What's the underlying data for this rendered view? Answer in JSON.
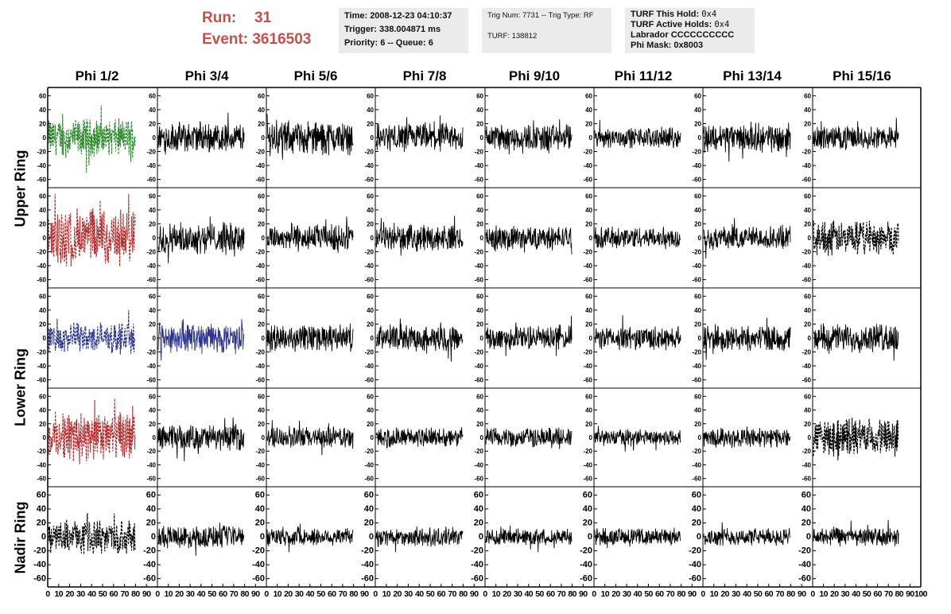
{
  "header": {
    "run_label": "Run:",
    "run_value": "31",
    "event_label": "Event:",
    "event_value": "3616503",
    "time": "Time: 2008-12-23 04:10:37",
    "trigger": "Trigger: 338.004871 ms",
    "priority": "Priority: 6 -- Queue: 6",
    "trig_num": "Trig Num: 7731 -- Trig Type: RF",
    "turf": "TURF: 138812",
    "turf_this_hold_label": "TURF This Hold:",
    "turf_this_hold_value": "0x4",
    "turf_active_holds_label": "TURF Active Holds:",
    "turf_active_holds_value": "0x4",
    "labrador": "Labrador CCCCCCCCCC",
    "phi_mask": "Phi Mask: 0x8003"
  },
  "columns": [
    "Phi 1/2",
    "Phi 3/4",
    "Phi 5/6",
    "Phi 7/8",
    "Phi 9/10",
    "Phi 11/12",
    "Phi 13/14",
    "Phi 15/16"
  ],
  "rows": [
    "Upper Ring",
    "Lower Ring",
    "Nadir Ring"
  ],
  "colors": {
    "green": "#2a8a2a",
    "red": "#b52a2a",
    "blue": "#2b3590",
    "black": "#000000"
  },
  "chart_data": {
    "type": "line",
    "layout": "grid of 5 panel rows x 8 panel columns; two panel rows per Upper/Lower ring, one panel row for Nadir ring",
    "ylim": [
      -65,
      65
    ],
    "xlim": [
      0,
      100
    ],
    "yticks": [
      -60,
      -40,
      -20,
      0,
      20,
      40,
      60
    ],
    "xticks": [
      0,
      10,
      20,
      30,
      40,
      50,
      60,
      70,
      80,
      90,
      100
    ],
    "panel_rows": [
      {
        "ring": "Upper Ring",
        "amplitude": [
          22,
          18,
          20,
          17,
          16,
          12,
          17,
          14
        ],
        "highlight": [
          {
            "col": 0,
            "color": "green",
            "dashed": true
          }
        ]
      },
      {
        "ring": "Upper Ring",
        "amplitude": [
          35,
          18,
          16,
          15,
          14,
          13,
          14,
          20
        ],
        "highlight": [
          {
            "col": 0,
            "color": "red",
            "dashed": true
          },
          {
            "col": 7,
            "color": "black",
            "dashed": true
          }
        ]
      },
      {
        "ring": "Lower Ring",
        "amplitude": [
          18,
          18,
          16,
          15,
          14,
          14,
          15,
          17
        ],
        "highlight": [
          {
            "col": 0,
            "color": "blue",
            "dashed": true
          },
          {
            "col": 1,
            "color": "blue",
            "dashed": false
          }
        ]
      },
      {
        "ring": "Lower Ring",
        "amplitude": [
          30,
          15,
          13,
          12,
          12,
          10,
          12,
          22
        ],
        "highlight": [
          {
            "col": 0,
            "color": "red",
            "dashed": true
          },
          {
            "col": 7,
            "color": "black",
            "dashed": true
          }
        ]
      },
      {
        "ring": "Nadir Ring",
        "amplitude": [
          20,
          13,
          11,
          11,
          10,
          10,
          10,
          11
        ],
        "highlight": [
          {
            "col": 0,
            "color": "black",
            "dashed": true
          }
        ]
      }
    ]
  }
}
